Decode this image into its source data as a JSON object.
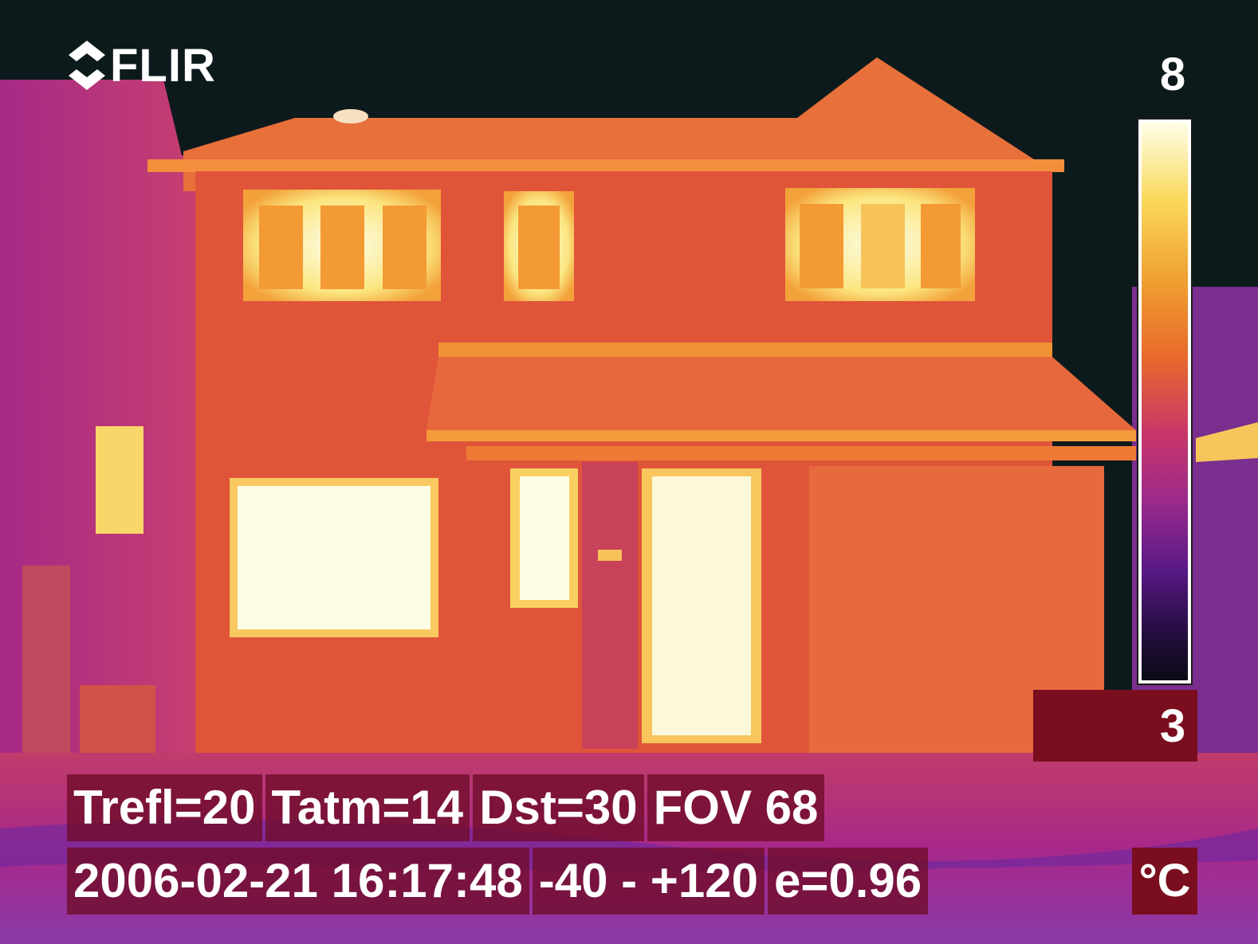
{
  "brand": {
    "name": "FLIR"
  },
  "scale": {
    "max": "8",
    "min": "3",
    "unit": "°C"
  },
  "parameters": {
    "trefl": "Trefl=20",
    "tatm": "Tatm=14",
    "dst": "Dst=30",
    "fov": "FOV 68"
  },
  "readout": {
    "datetime": "2006-02-21 16:17:48",
    "range": "-40 -  +120",
    "emissivity": "e=0.96"
  },
  "palette": {
    "sky": "#0d1a1c",
    "wall": "#e0553a",
    "roof": "#f07a32",
    "window_hot": "#fdfcd6",
    "ground": "#b8317e"
  }
}
